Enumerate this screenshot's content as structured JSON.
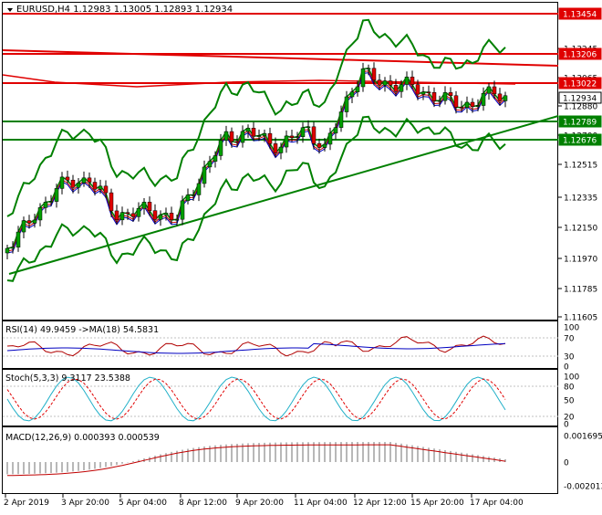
{
  "main_header": {
    "title": "EURUSD,H4  1.12983 1.13005 1.12893 1.12934"
  },
  "main_axis": {
    "ticks": [
      "1.13245",
      "1.13065",
      "1.12880",
      "1.12700",
      "1.12515",
      "1.12335",
      "1.12150",
      "1.11970",
      "1.11785",
      "1.11605"
    ],
    "price_labels": [
      {
        "text": "1.13454",
        "kind": "red"
      },
      {
        "text": "1.13206",
        "kind": "red"
      },
      {
        "text": "1.13022",
        "kind": "red"
      },
      {
        "text": "1.12934",
        "kind": "current"
      },
      {
        "text": "1.12789",
        "kind": "green"
      },
      {
        "text": "1.12676",
        "kind": "green"
      }
    ]
  },
  "rsi_panel": {
    "title": "RSI(14) 49.9459  ->MA(18) 54.5831",
    "ticks": [
      "100",
      "70",
      "30",
      "0"
    ]
  },
  "stoch_panel": {
    "title": "Stoch(5,3,3) 9.3117 23.5388",
    "ticks": [
      "100",
      "80",
      "50",
      "20",
      "0"
    ]
  },
  "macd_panel": {
    "title": "MACD(12,26,9) 0.000393 0.000539",
    "ticks": [
      "0.001695",
      "0",
      "-0.002013"
    ]
  },
  "time_axis": [
    "2 Apr 2019",
    "3 Apr 20:00",
    "5 Apr 04:00",
    "8 Apr 12:00",
    "9 Apr 20:00",
    "11 Apr 04:00",
    "12 Apr 12:00",
    "15 Apr 20:00",
    "17 Apr 04:00"
  ],
  "colors": {
    "bull": "#00a000",
    "bear": "#e00000",
    "band": "#008000",
    "level_red": "#e00000",
    "level_green": "#008000",
    "rsi": "#b00000",
    "rsi_ma": "#0000c0",
    "stoch_main": "#20b0c8",
    "stoch_signal": "#e00000",
    "macd_hist": "#a0a0a0",
    "macd_signal": "#c00000"
  },
  "icons": {
    "dropdown": "triangle-down-icon"
  }
}
